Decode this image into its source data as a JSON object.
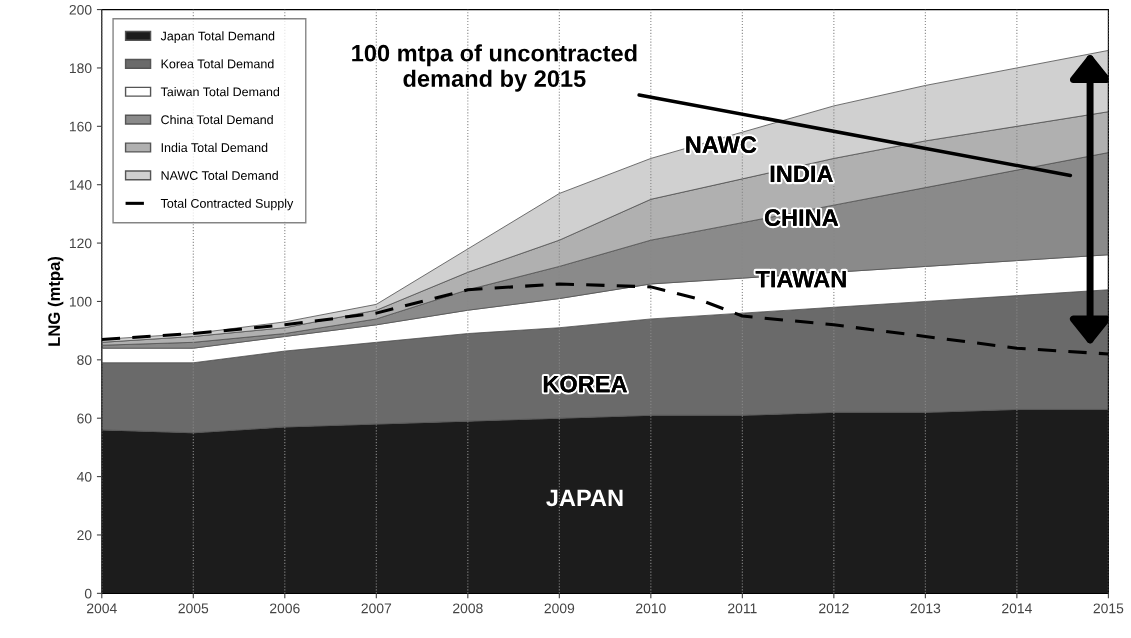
{
  "chart_data": {
    "type": "area",
    "stacked": true,
    "ylabel": "LNG (mtpa)",
    "x": [
      2004,
      2005,
      2006,
      2007,
      2008,
      2009,
      2010,
      2011,
      2012,
      2013,
      2014,
      2015
    ],
    "xlim": [
      2004,
      2015
    ],
    "xticks": [
      2004,
      2005,
      2006,
      2007,
      2008,
      2009,
      2010,
      2011,
      2012,
      2013,
      2014,
      2015
    ],
    "ylim": [
      0,
      200
    ],
    "yticks": [
      0,
      20,
      40,
      60,
      80,
      100,
      120,
      140,
      160,
      180,
      200
    ],
    "grid": "x",
    "legend": "top left",
    "series": [
      {
        "name": "Japan Total Demand",
        "color": "#1c1c1c",
        "values": [
          56,
          55,
          57,
          58,
          59,
          60,
          61,
          61,
          62,
          62,
          63,
          63
        ]
      },
      {
        "name": "Korea Total Demand",
        "color": "#6a6a6a",
        "values": [
          23,
          24,
          26,
          28,
          30,
          31,
          33,
          35,
          36,
          38,
          39,
          41
        ]
      },
      {
        "name": "Taiwan Total Demand",
        "color": "#ffffff",
        "values": [
          5,
          5,
          5,
          6,
          8,
          10,
          12,
          12,
          12,
          12,
          12,
          12
        ]
      },
      {
        "name": "China Total Demand",
        "color": "#8a8a8a",
        "values": [
          1,
          2,
          1,
          2,
          7,
          11,
          15,
          19,
          23,
          27,
          31,
          35
        ]
      },
      {
        "name": "India Total Demand",
        "color": "#b0b0b0",
        "values": [
          1,
          2,
          2,
          3,
          6,
          9,
          14,
          15,
          16,
          16,
          15,
          14
        ]
      },
      {
        "name": "NAWC Total Demand",
        "color": "#d0d0d0",
        "values": [
          1,
          1,
          2,
          2,
          8,
          16,
          14,
          16,
          18,
          19,
          20,
          21
        ]
      },
      {
        "name": "Total Contracted Supply",
        "type": "line",
        "color": "#000000",
        "line_style": "dashed",
        "x": [
          2004,
          2005,
          2006,
          2007,
          2008,
          2009,
          2010,
          2010.5,
          2011,
          2012,
          2013,
          2014,
          2015
        ],
        "values": [
          87,
          89,
          92,
          96,
          104,
          106,
          105,
          101,
          95,
          92,
          88,
          84,
          82
        ]
      }
    ],
    "annotations": [
      "100 mtpa of uncontracted\ndemand by 2015",
      "NAWC",
      "INDIA",
      "CHINA",
      "TIAWAN",
      "KOREA",
      "JAPAN"
    ]
  }
}
